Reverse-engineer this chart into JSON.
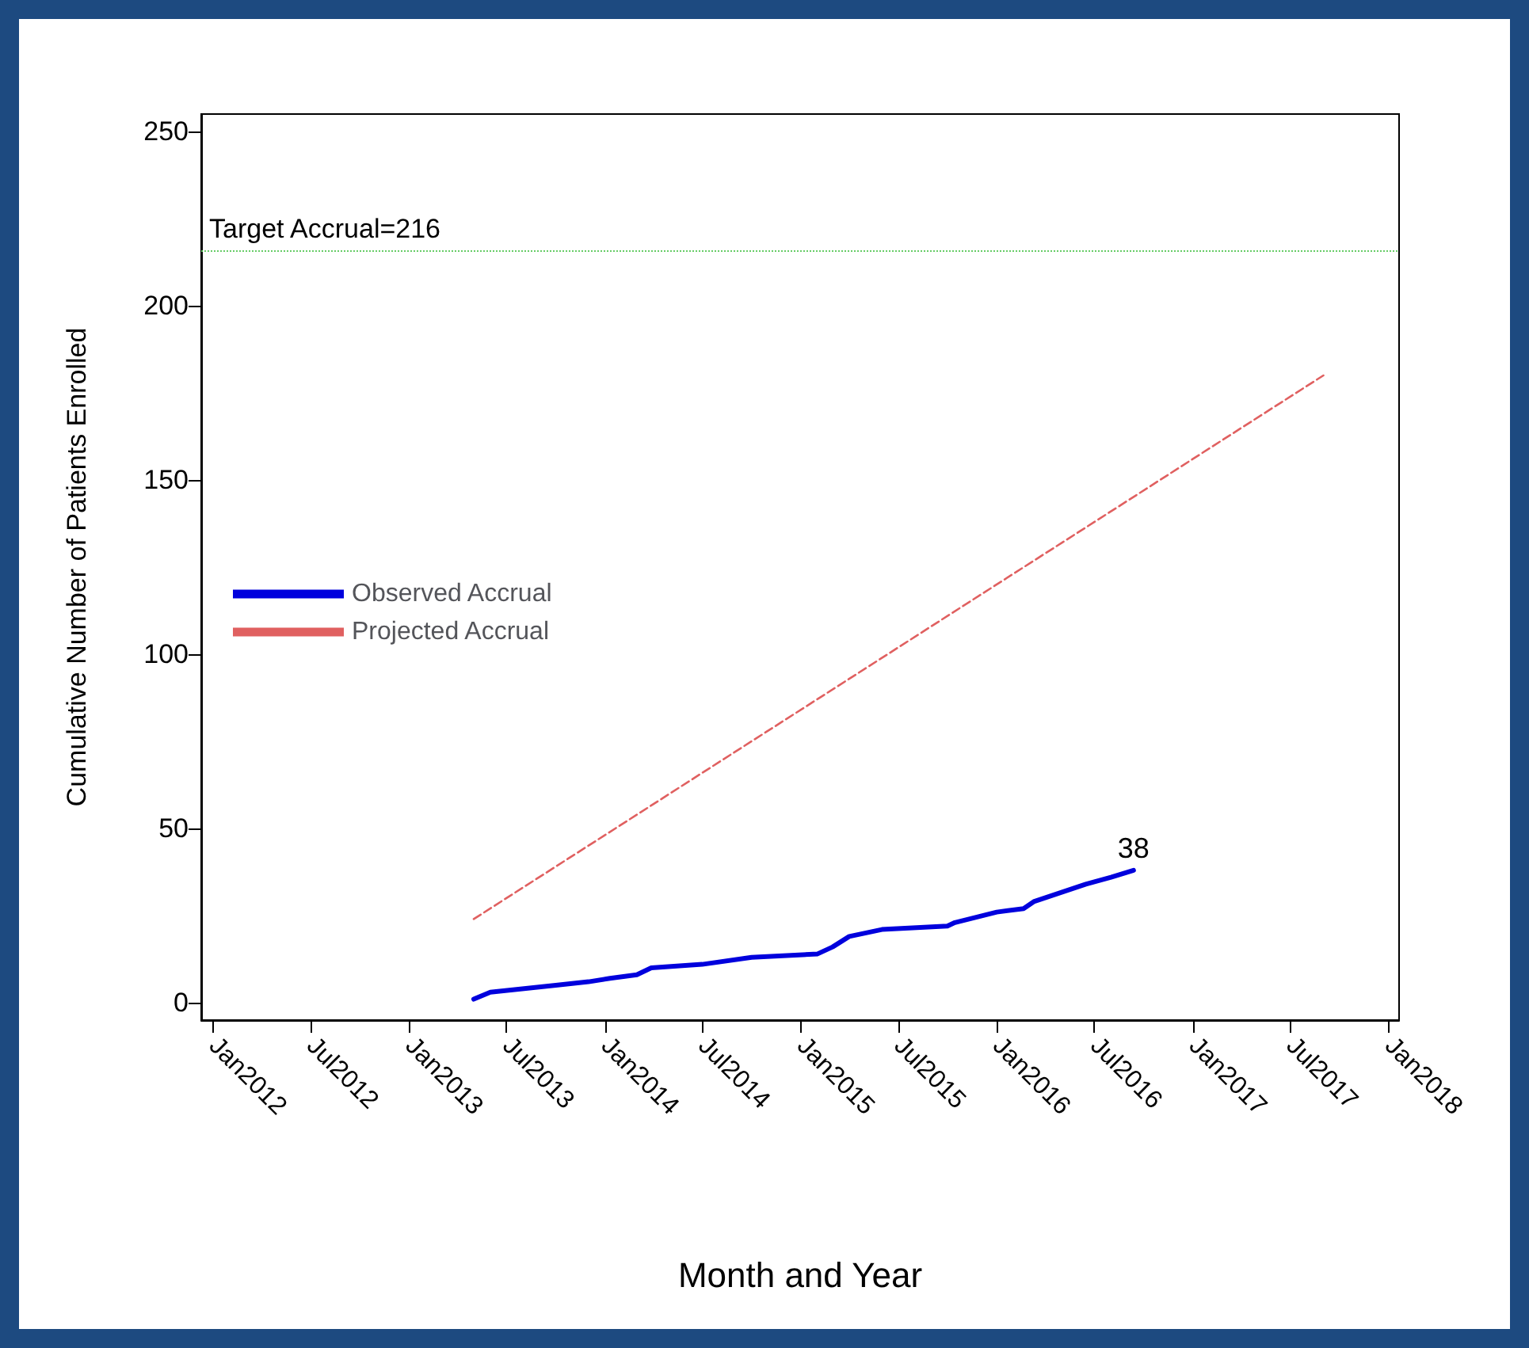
{
  "chart_data": {
    "type": "line",
    "xlabel": "Month and Year",
    "ylabel": "Cumulative Number of Patients Enrolled",
    "series": [
      {
        "name": "Observed Accrual",
        "color": "#0000dd",
        "line_style": "solid",
        "x": [
          "2013-05-01",
          "2013-06-01",
          "2013-10-01",
          "2013-12-01",
          "2014-01-10",
          "2014-03-01",
          "2014-03-28",
          "2014-07-01",
          "2014-10-01",
          "2015-02-01",
          "2015-03-01",
          "2015-04-01",
          "2015-06-01",
          "2015-10-01",
          "2015-10-15",
          "2016-01-01",
          "2016-02-20",
          "2016-03-10",
          "2016-06-15",
          "2016-08-01",
          "2016-09-12"
        ],
        "values": [
          1,
          3,
          5,
          6,
          7,
          8,
          10,
          11,
          13,
          14,
          16,
          19,
          21,
          22,
          23,
          26,
          27,
          29,
          34,
          36,
          38
        ],
        "value_labels": [
          null,
          null,
          null,
          null,
          null,
          null,
          null,
          null,
          null,
          null,
          null,
          null,
          null,
          null,
          null,
          null,
          null,
          null,
          null,
          null,
          "38"
        ]
      },
      {
        "name": "Projected Accrual",
        "color": "#e06060",
        "line_style": "dashed",
        "x": [
          "2013-05-01",
          "2017-09-01"
        ],
        "values": [
          24,
          180
        ]
      }
    ],
    "xlim": [
      "2011-12-10",
      "2018-01-20"
    ],
    "xticks": [
      {
        "value": "2012-01-01",
        "label": "Jan2012"
      },
      {
        "value": "2012-07-01",
        "label": "Jul2012"
      },
      {
        "value": "2013-01-01",
        "label": "Jan2013"
      },
      {
        "value": "2013-07-01",
        "label": "Jul2013"
      },
      {
        "value": "2014-01-01",
        "label": "Jan2014"
      },
      {
        "value": "2014-07-01",
        "label": "Jul2014"
      },
      {
        "value": "2015-01-01",
        "label": "Jan2015"
      },
      {
        "value": "2015-07-01",
        "label": "Jul2015"
      },
      {
        "value": "2016-01-01",
        "label": "Jan2016"
      },
      {
        "value": "2016-07-01",
        "label": "Jul2016"
      },
      {
        "value": "2017-01-01",
        "label": "Jan2017"
      },
      {
        "value": "2017-07-01",
        "label": "Jul2017"
      },
      {
        "value": "2018-01-01",
        "label": "Jan2018"
      }
    ],
    "ylim": [
      -5,
      255
    ],
    "yticks": [
      0,
      50,
      100,
      150,
      200,
      250
    ],
    "ref_lines": [
      {
        "axis": "y",
        "value": 216,
        "label": "Target Accrual=216",
        "color": "#66cc66",
        "line_style": "dotted"
      }
    ],
    "legend": "left",
    "grid": false,
    "marker": "none"
  }
}
